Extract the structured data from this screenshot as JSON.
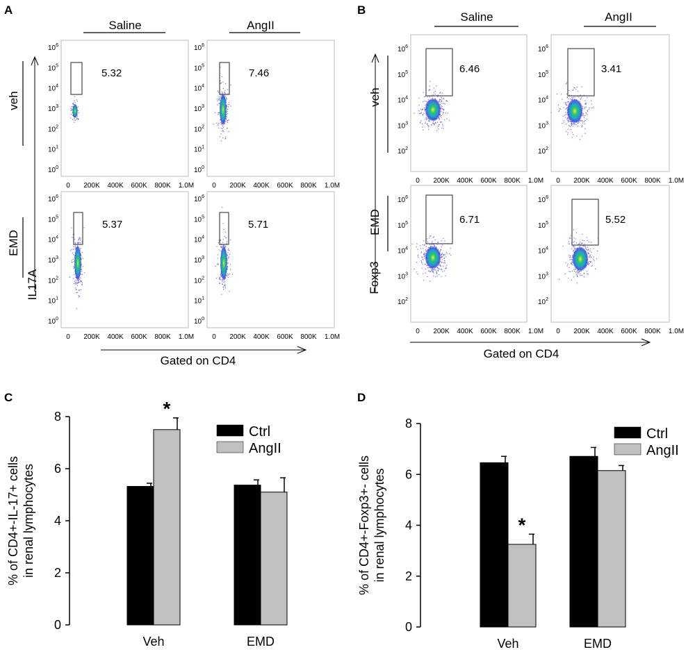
{
  "panel_labels": {
    "a": "A",
    "b": "B",
    "c": "C",
    "d": "D"
  },
  "flow": {
    "a": {
      "col_headers": [
        "Saline",
        "AngII"
      ],
      "row_labels": [
        "veh",
        "EMD"
      ],
      "y_marker": "IL17A",
      "x_title": "Gated on CD4",
      "x_ticks": [
        "0",
        "200K",
        "400K",
        "600K",
        "800K",
        "1.0M"
      ],
      "y_ticks": [
        {
          "b": "10",
          "e": "6"
        },
        {
          "b": "10",
          "e": "5"
        },
        {
          "b": "10",
          "e": "4"
        },
        {
          "b": "10",
          "e": "3"
        },
        {
          "b": "10",
          "e": "2"
        },
        {
          "b": "10",
          "e": "1"
        },
        {
          "b": "10",
          "e": "0"
        }
      ],
      "percentages": [
        "5.32",
        "7.46",
        "5.37",
        "5.71"
      ]
    },
    "b": {
      "col_headers": [
        "Saline",
        "AngII"
      ],
      "row_labels": [
        "veh",
        "EMD"
      ],
      "y_marker": "Foxp3",
      "x_title": "Gated on CD4",
      "x_ticks": [
        "0",
        "200K",
        "400K",
        "600K",
        "800K",
        "1.0M"
      ],
      "y_ticks": [
        {
          "b": "10",
          "e": "6"
        },
        {
          "b": "10",
          "e": "5"
        },
        {
          "b": "10",
          "e": "4"
        },
        {
          "b": "10",
          "e": "3"
        },
        {
          "b": "10",
          "e": "2"
        }
      ],
      "percentages": [
        "6.46",
        "3.41",
        "6.71",
        "5.52"
      ]
    }
  },
  "chart_data": [
    {
      "type": "bar",
      "id": "c",
      "categories": [
        "Veh",
        "EMD"
      ],
      "series": [
        {
          "name": "Ctrl",
          "values": [
            5.32,
            5.37
          ],
          "errors": [
            0.12,
            0.2
          ],
          "color": "#000000"
        },
        {
          "name": "AngII",
          "values": [
            7.5,
            5.1
          ],
          "errors": [
            0.45,
            0.55
          ],
          "color": "#c0c0c0"
        }
      ],
      "significance": [
        {
          "category": 0,
          "series": 1,
          "label": "*"
        }
      ],
      "ylabel": "% of CD4+-IL-17+ cells in renal lymphocytes",
      "ylabel_lines": [
        "% of CD4+-IL-17+ cells",
        "in renal lymphocytes"
      ],
      "ylim": [
        0,
        8
      ],
      "yticks": [
        0,
        2,
        4,
        6,
        8
      ],
      "legend": "top-right"
    },
    {
      "type": "bar",
      "id": "d",
      "categories": [
        "Veh",
        "EMD"
      ],
      "series": [
        {
          "name": "Ctrl",
          "values": [
            6.46,
            6.71
          ],
          "errors": [
            0.25,
            0.35
          ],
          "color": "#000000"
        },
        {
          "name": "AngII",
          "values": [
            3.25,
            6.15
          ],
          "errors": [
            0.4,
            0.2
          ],
          "color": "#c0c0c0"
        }
      ],
      "significance": [
        {
          "category": 0,
          "series": 1,
          "label": "*"
        }
      ],
      "ylabel": "% of CD4+-Foxp3+- cells in renal lymphocytes",
      "ylabel_lines": [
        "% of CD4+-Foxp3+- cells",
        "in renal lymphocytes"
      ],
      "ylim": [
        0,
        8
      ],
      "yticks": [
        0,
        2,
        4,
        6,
        8
      ],
      "legend": "top-right"
    }
  ]
}
